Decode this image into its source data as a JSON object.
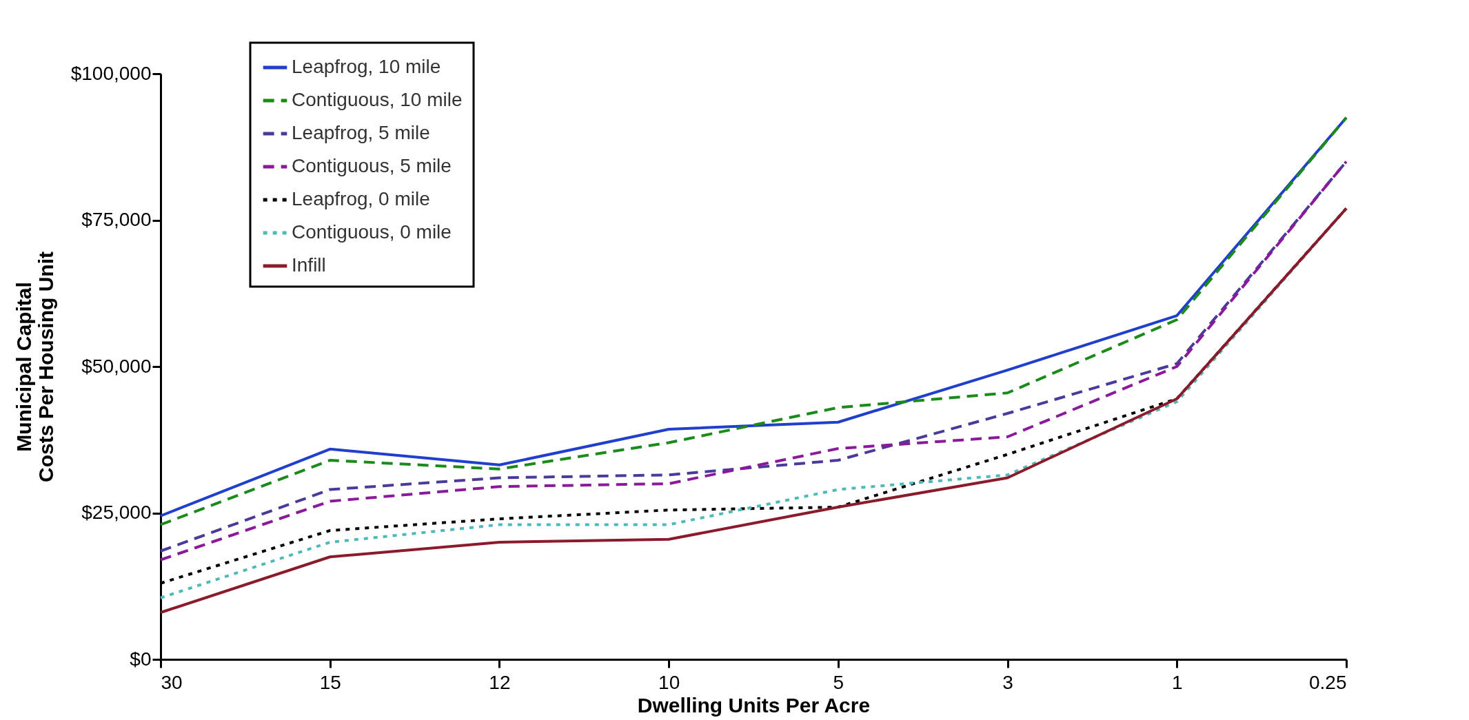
{
  "chart_data": {
    "type": "line",
    "xlabel": "Dwelling Units Per Acre",
    "ylabel": "Municipal Capital Costs Per Housing Unit",
    "categories": [
      "30",
      "15",
      "12",
      "10",
      "5",
      "3",
      "1",
      "0.25"
    ],
    "ylim": [
      0,
      100000
    ],
    "yticks": [
      {
        "value": 0,
        "label": "$0"
      },
      {
        "value": 25000,
        "label": "$25,000"
      },
      {
        "value": 50000,
        "label": "$50,000"
      },
      {
        "value": 75000,
        "label": "$75,000"
      },
      {
        "value": 100000,
        "label": "$100,000"
      }
    ],
    "grid": false,
    "legend": "top left",
    "marker": "none",
    "series": [
      {
        "name": "Leapfrog, 10 mile",
        "color": "#1f3fcc",
        "line_style": "solid",
        "values": [
          24500,
          35900,
          33200,
          39300,
          40500,
          49400,
          58700,
          92500
        ]
      },
      {
        "name": "Contiguous, 10 mile",
        "color": "#1a8a1a",
        "line_style": "dashed",
        "values": [
          23000,
          34000,
          32500,
          37000,
          43000,
          45500,
          58000,
          92500
        ]
      },
      {
        "name": "Leapfrog, 5 mile",
        "color": "#4b3a9a",
        "line_style": "dashed",
        "values": [
          18500,
          29000,
          31000,
          31500,
          34000,
          42000,
          50500,
          85000
        ]
      },
      {
        "name": "Contiguous, 5 mile",
        "color": "#8b1a9a",
        "line_style": "dashed",
        "values": [
          17000,
          27000,
          29500,
          30000,
          36000,
          38000,
          50000,
          85000
        ]
      },
      {
        "name": "Leapfrog, 0 mile",
        "color": "#000000",
        "line_style": "dotted",
        "values": [
          13000,
          22000,
          24000,
          25500,
          26000,
          35000,
          44500,
          77000
        ]
      },
      {
        "name": "Contiguous, 0 mile",
        "color": "#4fb8b8",
        "line_style": "dotted",
        "values": [
          10500,
          20000,
          23000,
          23000,
          29000,
          31500,
          44000,
          77000
        ]
      },
      {
        "name": "Infill",
        "color": "#8b1a2a",
        "line_style": "solid",
        "values": [
          8000,
          17500,
          20000,
          20500,
          26000,
          31000,
          44500,
          77000
        ]
      }
    ]
  }
}
